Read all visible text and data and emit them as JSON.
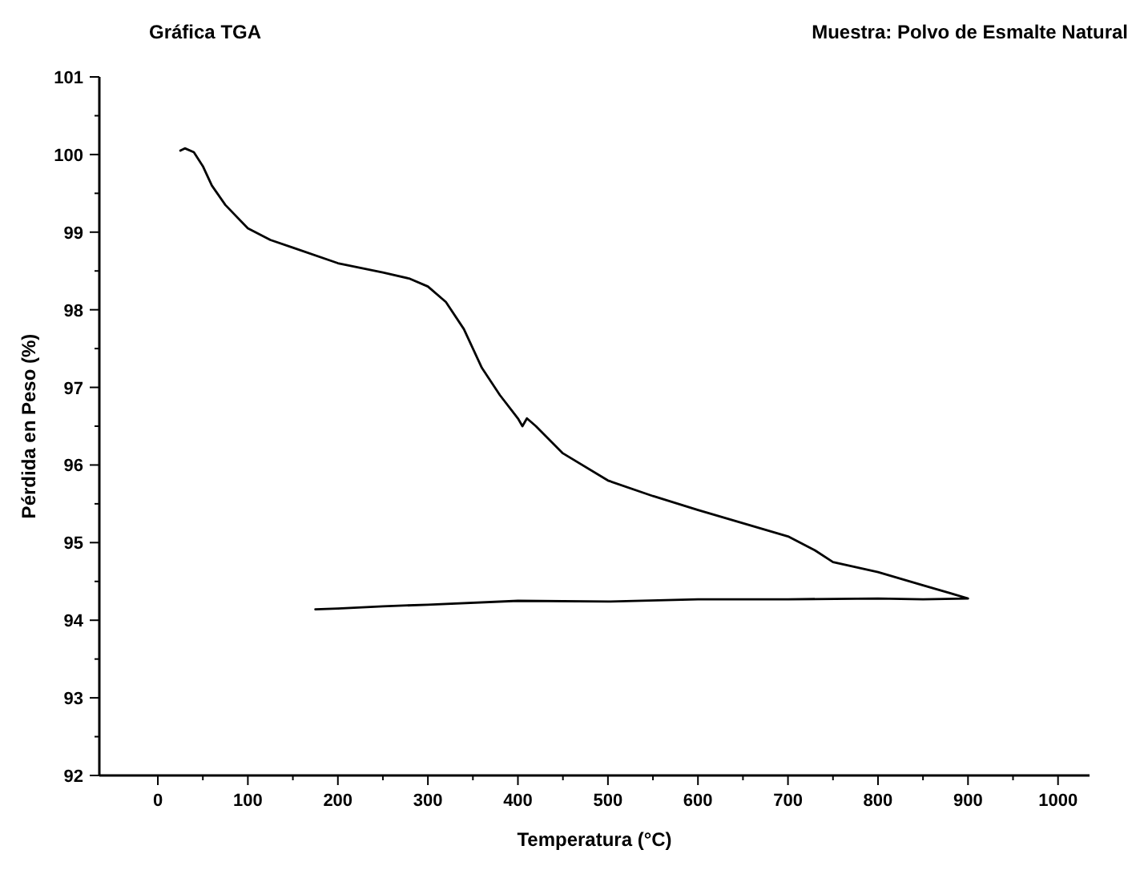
{
  "chart_data": {
    "type": "line",
    "title": "Gráfica TGA",
    "subtitle": "Muestra: Polvo de Esmalte Natural",
    "xlabel": "Temperatura (°C)",
    "ylabel": "Pérdida en Peso (%)",
    "xlim": [
      -65,
      1035
    ],
    "ylim": [
      92,
      101
    ],
    "xticks": [
      0,
      {
        "value": 50,
        "label": null
      },
      100,
      {
        "value": 150,
        "label": null
      },
      200,
      {
        "value": 250,
        "label": null
      },
      300,
      {
        "value": 350,
        "label": null
      },
      400,
      {
        "value": 450,
        "label": null
      },
      500,
      {
        "value": 550,
        "label": null
      },
      600,
      {
        "value": 650,
        "label": null
      },
      700,
      {
        "value": 750,
        "label": null
      },
      800,
      {
        "value": 850,
        "label": null
      },
      900,
      {
        "value": 950,
        "label": null
      },
      1000
    ],
    "yticks": [
      92,
      {
        "value": 92.5,
        "label": null
      },
      93,
      {
        "value": 93.5,
        "label": null
      },
      94,
      {
        "value": 94.5,
        "label": null
      },
      95,
      {
        "value": 95.5,
        "label": null
      },
      96,
      {
        "value": 96.5,
        "label": null
      },
      97,
      {
        "value": 97.5,
        "label": null
      },
      98,
      {
        "value": 98.5,
        "label": null
      },
      99,
      {
        "value": 99.5,
        "label": null
      },
      100,
      {
        "value": 100.5,
        "label": null
      },
      101
    ],
    "grid": false,
    "marker": "none",
    "line_style": "solid",
    "series": [
      {
        "color": "#000000",
        "x": [
          25,
          30,
          40,
          50,
          60,
          75,
          100,
          125,
          150,
          200,
          250,
          280,
          300,
          320,
          340,
          360,
          380,
          400,
          405,
          410,
          420,
          450,
          500,
          550,
          600,
          650,
          700,
          730,
          750,
          800,
          850,
          880,
          900,
          850,
          800,
          700,
          600,
          500,
          400,
          300,
          250,
          200,
          175
        ],
        "values": [
          100.05,
          100.08,
          100.03,
          99.85,
          99.6,
          99.35,
          99.05,
          98.9,
          98.8,
          98.6,
          98.48,
          98.4,
          98.3,
          98.1,
          97.75,
          97.25,
          96.9,
          96.6,
          96.5,
          96.6,
          96.5,
          96.15,
          95.8,
          95.6,
          95.42,
          95.25,
          95.08,
          94.9,
          94.75,
          94.62,
          94.45,
          94.35,
          94.28,
          94.27,
          94.28,
          94.27,
          94.27,
          94.24,
          94.25,
          94.2,
          94.18,
          94.15,
          94.14
        ]
      }
    ]
  }
}
